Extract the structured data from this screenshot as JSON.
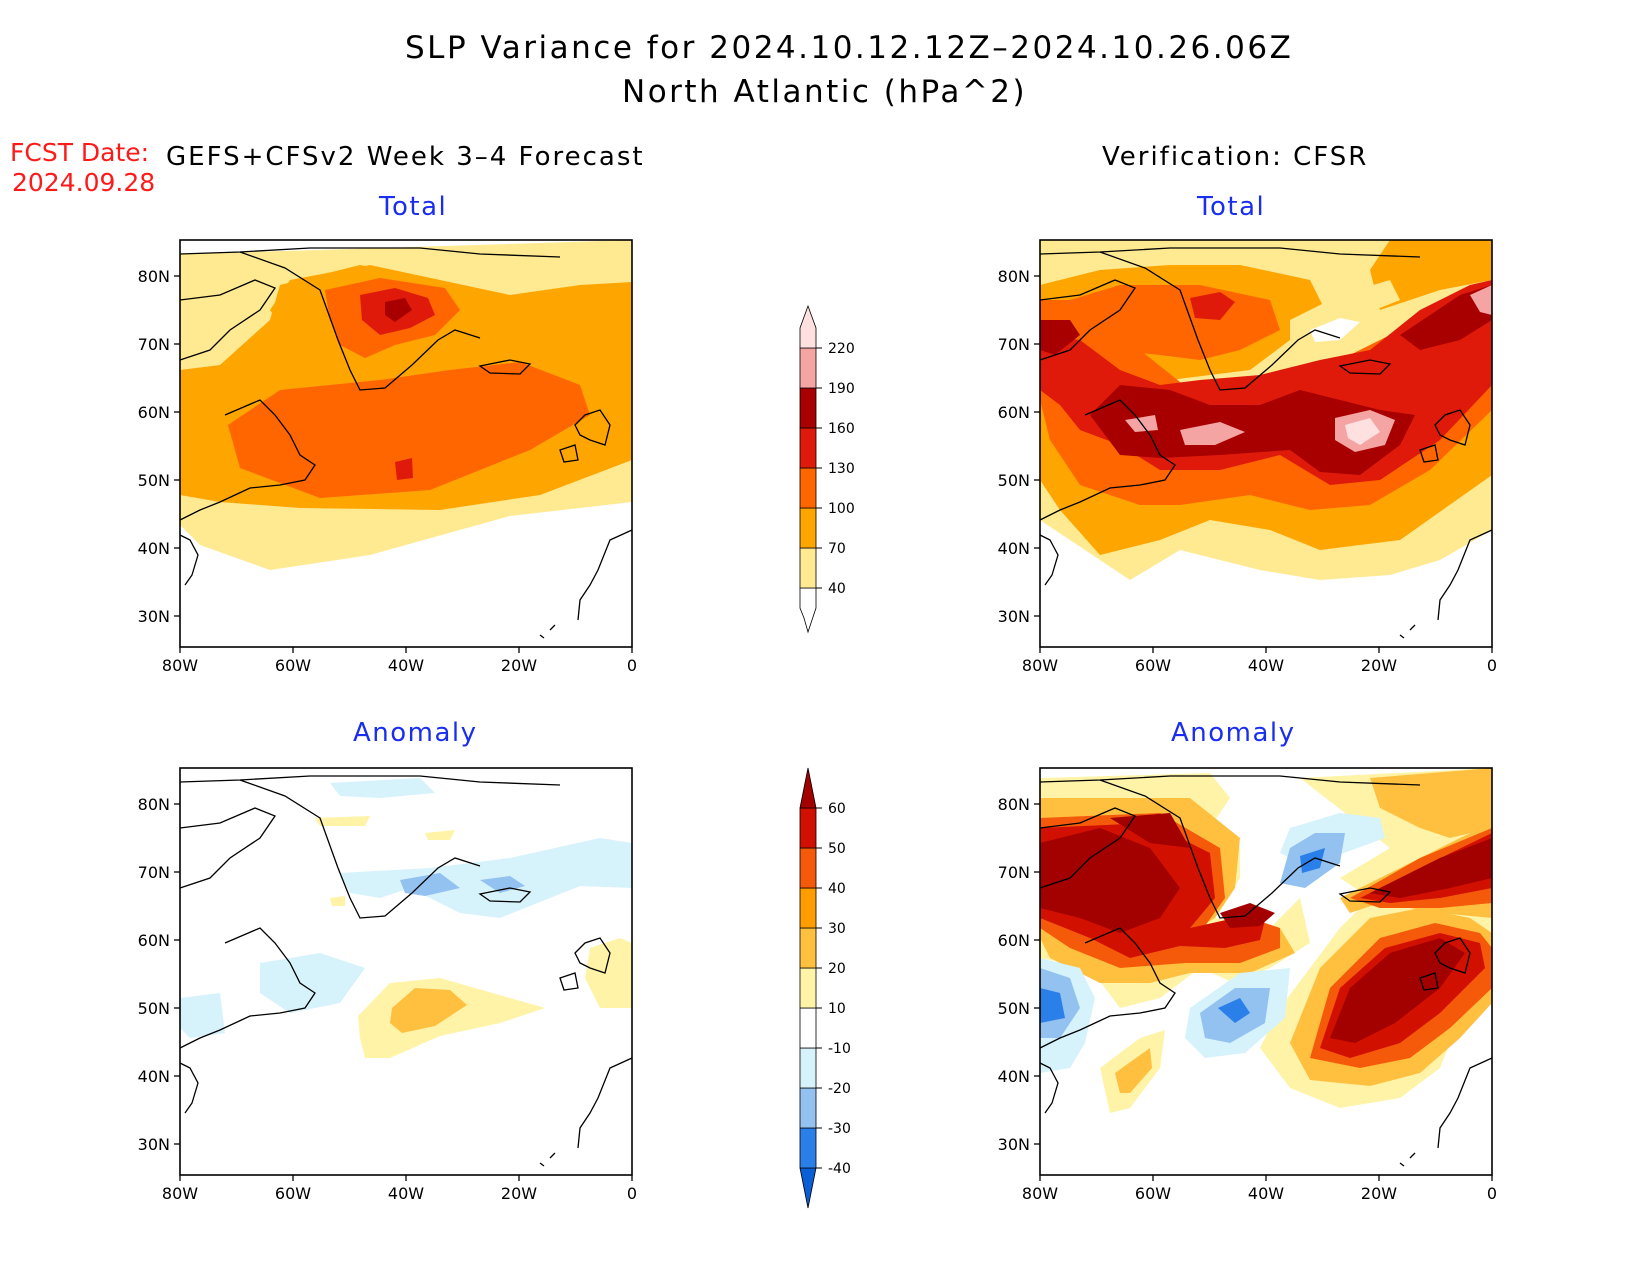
{
  "header": {
    "title_line1": "SLP Variance for 2024.10.12.12Z–2024.10.26.06Z",
    "title_line2": "North Atlantic (hPa^2)"
  },
  "fcst": {
    "label": "FCST Date:",
    "date": "2024.09.28"
  },
  "columns": {
    "forecast": "GEFS+CFSv2 Week 3–4 Forecast",
    "verification": "Verification: CFSR"
  },
  "panels": {
    "total_title": "Total",
    "anomaly_title": "Anomaly"
  },
  "axes": {
    "lat_labels": [
      "80N",
      "70N",
      "60N",
      "50N",
      "40N",
      "30N"
    ],
    "lon_labels": [
      "80W",
      "60W",
      "40W",
      "20W",
      "0"
    ]
  },
  "colorbar_total": {
    "levels": [
      "40",
      "70",
      "100",
      "130",
      "160",
      "190",
      "220"
    ],
    "colors": [
      "#ffffff",
      "#ffe991",
      "#ffa500",
      "#ff6600",
      "#e01a0a",
      "#a80000",
      "#f5a4a4",
      "#ffe0e0"
    ]
  },
  "colorbar_anomaly": {
    "levels": [
      "-40",
      "-30",
      "-20",
      "-10",
      "10",
      "20",
      "30",
      "40",
      "50",
      "60"
    ],
    "colors": [
      "#0a5fd6",
      "#2b7fe8",
      "#93c1f0",
      "#d6f2fb",
      "#ffffff",
      "#fff3a8",
      "#ffc040",
      "#ff9c00",
      "#f55a0a",
      "#d11000",
      "#a30000"
    ]
  }
}
